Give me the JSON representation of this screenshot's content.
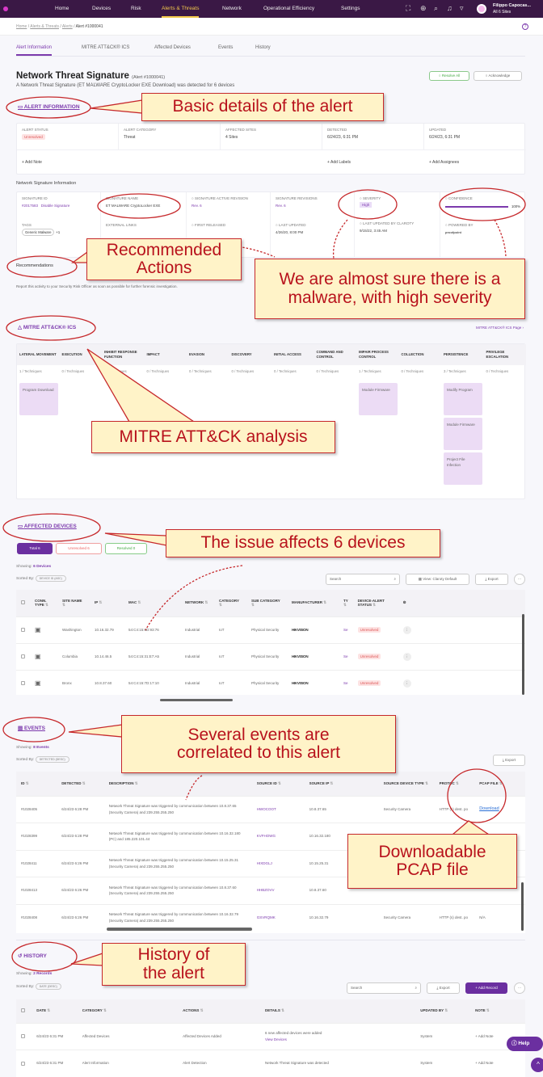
{
  "nav": {
    "items": [
      "Home",
      "Devices",
      "Risk",
      "Alerts & Threats",
      "Network",
      "Operational Efficiency",
      "Settings"
    ],
    "active": "Alerts & Threats",
    "user_name": "Filippo Capocas...",
    "user_sites": "All 6 Sites",
    "icons": [
      "screen-icon",
      "globe-icon",
      "search-icon",
      "bell-icon",
      "filter-icon"
    ]
  },
  "breadcrumb": {
    "items": [
      "Home",
      "Alerts & Threats",
      "Alerts"
    ],
    "current": "Alert #1000041"
  },
  "tabs": [
    "Alert Information",
    "MITRE ATT&CK® ICS",
    "Affected Devices",
    "Events",
    "History"
  ],
  "header": {
    "title": "Network Threat Signature",
    "alert_id": "(Alert #1000041)",
    "subtitle": "A Network Threat Signature (ET MALWARE CryptoLocker EXE Download) was detected for 6 devices",
    "resolve_label": "Resolve All",
    "acknowledge_label": "Acknowledge"
  },
  "alert_info": {
    "heading": "Alert Information",
    "fields": [
      {
        "label": "Alert Status",
        "value": "Unresolved"
      },
      {
        "label": "Alert Category",
        "value": "Threat"
      },
      {
        "label": "Affected Sites",
        "value": "4 Sites"
      },
      {
        "label": "Detected",
        "value": "6/24/23, 6:31 PM"
      },
      {
        "label": "Updated",
        "value": "6/24/23, 6:31 PM"
      }
    ],
    "add_note": "+ Add Note",
    "add_labels": "+ Add Labels",
    "add_assignees": "+ Add Assignees"
  },
  "signature": {
    "heading": "Network Signature Information",
    "signature_id_label": "Signature ID",
    "signature_id": "#2017583",
    "disable": "Disable Signature",
    "name_label": "Signature Name",
    "name": "ET MALWARE CryptoLocker EXE",
    "active_rev_label": "Signature Active Revision",
    "active_rev": "Rev. 6",
    "revisions_label": "Signature Revisions",
    "revisions": "Rev. 6",
    "severity_label": "Severity",
    "severity": "High",
    "confidence_label": "Confidence",
    "confidence": 100,
    "confidence_text": "100%",
    "tags_label": "Tags",
    "tag": "Generic Malware",
    "tag_more": "+1",
    "links_label": "External Links",
    "first_released_label": "First Released",
    "last_updated_label": "Last Updated",
    "last_updated": "4/26/20, 8:00 PM",
    "last_updated_claroty_label": "Last Updated by Claroty",
    "last_updated_claroty": "9/15/22, 3:45 AM",
    "powered_label": "Powered by",
    "powered_by": "proofpoint"
  },
  "recommendations": {
    "heading": "Recommendations",
    "text": "Report this activity to your Security Risk Officer as soon as possible for further forensic investigation."
  },
  "mitre": {
    "heading": "MITRE ATT&CK® ICS",
    "page_link": "MITRE ATT&CK® ICS Page ›",
    "columns": [
      {
        "name": "Lateral Movement",
        "count": "1 / Techniques",
        "techniques": [
          "Program Download"
        ]
      },
      {
        "name": "Execution",
        "count": "0 / Techniques",
        "techniques": []
      },
      {
        "name": "Inhibit Response Function",
        "count": "0 / Techniques",
        "techniques": []
      },
      {
        "name": "Impact",
        "count": "0 / Techniques",
        "techniques": []
      },
      {
        "name": "Evasion",
        "count": "0 / Techniques",
        "techniques": []
      },
      {
        "name": "Discovery",
        "count": "0 / Techniques",
        "techniques": []
      },
      {
        "name": "Initial Access",
        "count": "0 / Techniques",
        "techniques": []
      },
      {
        "name": "Command and Control",
        "count": "0 / Techniques",
        "techniques": []
      },
      {
        "name": "Impair Process Control",
        "count": "1 / Techniques",
        "techniques": [
          "Module Firmware"
        ]
      },
      {
        "name": "Collection",
        "count": "0 / Techniques",
        "techniques": []
      },
      {
        "name": "Persistence",
        "count": "3 / Techniques",
        "techniques": [
          "Modify Program",
          "Module Firmware",
          "Project File Infection"
        ]
      },
      {
        "name": "Privilege Escalation",
        "count": "0 / Techniques",
        "techniques": []
      }
    ]
  },
  "affected": {
    "heading": "Affected Devices",
    "filters": [
      "Total 6",
      "Unresolved 6",
      "Resolved 0"
    ],
    "showing_label": "Showing:",
    "showing": "6 Devices",
    "sorted_label": "Sorted By:",
    "sorted": "DEVICE ID (ASC)",
    "search_placeholder": "Search",
    "view_label": "View: Claroty Default",
    "export_label": "Export",
    "columns": [
      "Conn. Type",
      "Site Name",
      "IP",
      "MAC",
      "Network",
      "Category",
      "Sub Category",
      "Manufacturer",
      "Ty",
      "Device-Alert Status"
    ],
    "rows": [
      [
        "Washington",
        "10.16.32.79",
        "54:C4:15:6D:93:76",
        "Industrial",
        "IoT",
        "Physical Security",
        "HIKVISION",
        "Se",
        "Unresolved"
      ],
      [
        "Columbia",
        "10.14.46.5",
        "54:C4:15:31:E7:A5",
        "Industrial",
        "IoT",
        "Physical Security",
        "HIKVISION",
        "Se",
        "Unresolved"
      ],
      [
        "Bronx",
        "10.8.37.60",
        "54:C4:15:7D:17:10",
        "Industrial",
        "IoT",
        "Physical Security",
        "HIKVISION",
        "Se",
        "Unresolved"
      ]
    ]
  },
  "events": {
    "heading": "Events",
    "showing_label": "Showing:",
    "showing": "8 Events",
    "sorted_label": "Sorted By:",
    "sorted": "DETECTED (DESC)",
    "export_label": "Export",
    "columns": [
      "ID",
      "Detected",
      "Description",
      "Source ID",
      "Source IP",
      "Source Device Type",
      "Protoc",
      "PCAP File"
    ],
    "rows": [
      [
        "#1028405",
        "6/24/23 6:28 PM",
        "Network Threat Signature was triggered by communication between 10.8.37.65 (Security Camera) and 239.255.255.250",
        "HWOCOOT",
        "10.8.37.65",
        "Security Camera",
        "HTTP (s) dest. po",
        "Download"
      ],
      [
        "#1028399",
        "6/24/23 6:28 PM",
        "Network Threat Signature was triggered by communication between 10.16.32.180 (PC) and 185.220.101.44",
        "KVFHOWG",
        "10.16.32.180",
        "PC",
        "HTTP (s) dest. po",
        ""
      ],
      [
        "#1028411",
        "6/24/23 6:26 PM",
        "Network Threat Signature was triggered by communication between 10.15.25.31 (Security Camera) and 239.255.255.250",
        "HIXDGLJ",
        "10.15.25.31",
        "",
        "",
        ""
      ],
      [
        "#1028413",
        "6/24/23 6:26 PM",
        "Network Threat Signature was triggered by communication between 10.8.37.60 (Security Camera) and 239.255.255.250",
        "HHBZOVV",
        "10.8.37.60",
        "",
        "",
        ""
      ],
      [
        "#1028408",
        "6/24/23 6:26 PM",
        "Network Threat Signature was triggered by communication between 10.16.32.79 (Security Camera) and 239.255.255.250",
        "GSVRQMK",
        "10.16.32.79",
        "Security Camera",
        "HTTP (s) dest. po",
        "N/A"
      ]
    ]
  },
  "history": {
    "heading": "History",
    "showing_label": "Showing:",
    "showing": "2 Records",
    "sorted_label": "Sorted By:",
    "sorted": "DATE (DESC)",
    "search_placeholder": "Search",
    "export_label": "Export",
    "add_record": "+ Add Record",
    "columns": [
      "Date",
      "Category",
      "Actions",
      "Details",
      "Updated By",
      "Note"
    ],
    "rows": [
      [
        "6/24/23 6:31 PM",
        "Affected Devices",
        "Affected Devices Added",
        "6 new affected devices were added",
        "System",
        "+ Add Note",
        "View Devices"
      ],
      [
        "6/24/23 6:31 PM",
        "Alert Information",
        "Alert Detection",
        "Network Threat Signature was detected",
        "System",
        "+ Add Note",
        ""
      ]
    ]
  },
  "help_label": "Help",
  "callouts": {
    "basic": "Basic details of the alert",
    "recommended": "Recommended Actions",
    "malware": "We are almost sure there is a malware, with high severity",
    "mitre": "MITRE ATT&CK analysis",
    "devices": "The issue affects 6 devices",
    "events": "Several events are correlated to this alert",
    "pcap": "Downloadable PCAP file",
    "history": "History of the alert"
  },
  "colors": {
    "nav": "#3a1845",
    "accent": "#7c3aad",
    "callout_border": "#c6282b",
    "callout_fill": "#fff3c8",
    "callout_text": "#b8121c"
  }
}
